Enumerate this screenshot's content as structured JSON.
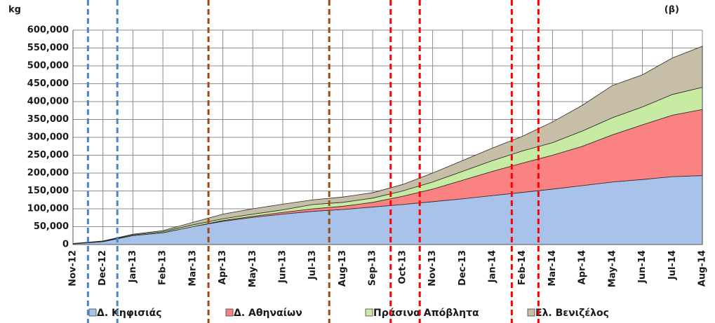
{
  "chart_data": {
    "type": "stacked_area",
    "y_label": "kg",
    "annotation": "(β)",
    "categories": [
      "Nov-12",
      "Dec-12",
      "Jan-13",
      "Feb-13",
      "Mar-13",
      "Apr-13",
      "May-13",
      "Jun-13",
      "Jul-13",
      "Aug-13",
      "Sep-13",
      "Oct-13",
      "Nov-13",
      "Dec-13",
      "Jan-14",
      "Feb-14",
      "Mar-14",
      "Apr-14",
      "May-14",
      "Jun-14",
      "Jul-14",
      "Aug-14"
    ],
    "series": [
      {
        "name": "Δ. Κηφισιάς",
        "color": "#a9c2ea",
        "values": [
          2000,
          8000,
          25000,
          33000,
          50000,
          65000,
          76000,
          85000,
          93000,
          98000,
          105000,
          112000,
          120000,
          128000,
          137000,
          146000,
          155000,
          165000,
          175000,
          182000,
          190000,
          193000
        ]
      },
      {
        "name": "Δ. Αθηναίων",
        "color": "#fa8282",
        "values": [
          0,
          0,
          0,
          0,
          0,
          2000,
          3000,
          5000,
          7000,
          9000,
          13000,
          23000,
          35000,
          52000,
          68000,
          82000,
          95000,
          110000,
          132000,
          153000,
          172000,
          185000
        ]
      },
      {
        "name": "Πράσινα Απόβλητα",
        "color": "#c8eba4",
        "values": [
          1000,
          1000,
          2000,
          3000,
          5000,
          5000,
          6000,
          7000,
          12000,
          11000,
          12000,
          15000,
          20000,
          25000,
          30000,
          34000,
          35000,
          43000,
          48000,
          50000,
          58000,
          62000
        ]
      },
      {
        "name": "Ελ. Βενιζέλος",
        "color": "#c6bea6",
        "values": [
          0,
          1000,
          2000,
          3000,
          7000,
          13000,
          15000,
          16000,
          13000,
          15000,
          15000,
          18000,
          25000,
          30000,
          35000,
          41000,
          58000,
          72000,
          90000,
          90000,
          102000,
          115000
        ]
      }
    ],
    "ylim": [
      0,
      600000
    ],
    "yticks": [
      0,
      {
        "value": 50000,
        "label": "50,000"
      },
      {
        "value": 100000,
        "label": "100,000"
      },
      {
        "value": 150000,
        "label": "150,000"
      },
      {
        "value": 200000,
        "label": "200,000"
      },
      {
        "value": 250000,
        "label": "250,000"
      },
      {
        "value": 300000,
        "label": "300,000"
      },
      {
        "value": 350000,
        "label": "350,000"
      },
      {
        "value": 400000,
        "label": "400,000"
      },
      {
        "value": 450000,
        "label": "450,000"
      },
      {
        "value": 500000,
        "label": "500,000"
      },
      {
        "value": 550000,
        "label": "550,000"
      },
      {
        "value": 600000,
        "label": "600,000"
      }
    ],
    "grid": true,
    "legend": "bottom",
    "event_lines": [
      {
        "x": 0.5,
        "color": "#4a86c8"
      },
      {
        "x": 1.48,
        "color": "#4a86c8"
      },
      {
        "x": 4.52,
        "color": "#9c4a12"
      },
      {
        "x": 8.55,
        "color": "#9c4a12"
      },
      {
        "x": 10.6,
        "color": "#ff0000"
      },
      {
        "x": 11.57,
        "color": "#ff0000"
      },
      {
        "x": 14.64,
        "color": "#ff0000"
      },
      {
        "x": 15.53,
        "color": "#ff0000"
      }
    ]
  }
}
